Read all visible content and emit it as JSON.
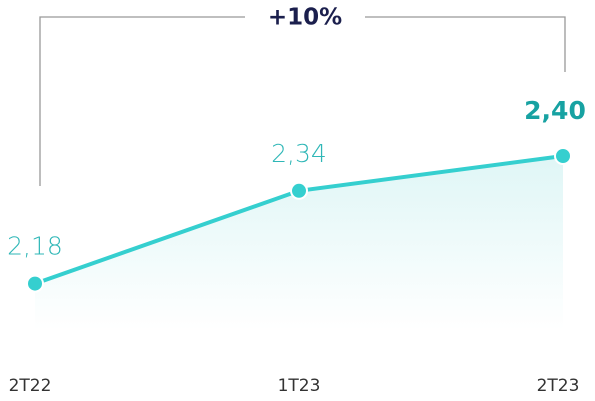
{
  "chart_data": {
    "type": "line",
    "annotation": "+10%",
    "categories": [
      "2T22",
      "1T23",
      "2T23"
    ],
    "values": [
      2.18,
      2.34,
      2.4
    ],
    "value_labels": [
      "2,18",
      "2,34",
      "2,40"
    ],
    "color": "#35cfcf",
    "ylim": [
      2.1,
      2.6
    ]
  }
}
